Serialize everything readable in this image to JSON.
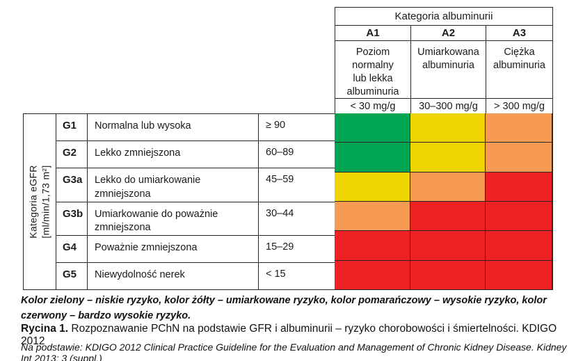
{
  "colors": {
    "green": "#00a553",
    "yellow": "#eed402",
    "orange": "#f79a52",
    "red": "#ee2124",
    "line": "#262626"
  },
  "albuminuria": {
    "title": "Kategoria albuminurii",
    "columns": [
      {
        "code": "A1",
        "desc": "Poziom\nnormalny\nlub lekka\nalbuminuria",
        "range": "< 30 mg/g"
      },
      {
        "code": "A2",
        "desc": "Umiarkowana\nalbuminuria",
        "range": "30–300 mg/g"
      },
      {
        "code": "A3",
        "desc": "Ciężka\nalbuminuria",
        "range": "> 300 mg/g"
      }
    ]
  },
  "gfr_axis": {
    "label_line1": "Kategoria eGFR",
    "label_line2": "[ml/min/1,73 m²]"
  },
  "gfr_rows": [
    {
      "code": "G1",
      "desc": "Normalna lub wysoka",
      "range": "≥ 90",
      "risk": [
        "green",
        "yellow",
        "orange"
      ]
    },
    {
      "code": "G2",
      "desc": "Lekko zmniejszona",
      "range": "60–89",
      "risk": [
        "green",
        "yellow",
        "orange"
      ]
    },
    {
      "code": "G3a",
      "desc": "Lekko do umiarkowanie zmniejszona",
      "range": "45–59",
      "risk": [
        "yellow",
        "orange",
        "red"
      ]
    },
    {
      "code": "G3b",
      "desc": "Umiarkowanie do poważnie zmniejszona",
      "range": "30–44",
      "risk": [
        "orange",
        "red",
        "red"
      ]
    },
    {
      "code": "G4",
      "desc": "Poważnie zmniejszona",
      "range": "15–29",
      "risk": [
        "red",
        "red",
        "red"
      ]
    },
    {
      "code": "G5",
      "desc": "Niewydolność nerek",
      "range": "< 15",
      "risk": [
        "red",
        "red",
        "red"
      ]
    }
  ],
  "legend": "Kolor zielony – niskie ryzyko, kolor żółty – umiarkowane ryzyko, kolor pomarańczowy – wysokie ryzyko, kolor czerwony – bardzo wysokie ryzyko.",
  "caption": {
    "label": "Rycina 1.",
    "text": " Rozpoznawanie PChN na podstawie GFR i albuminurii – ryzyko chorobowości i śmiertelności. KDIGO 2012"
  },
  "source": "Na podstawie: KDIGO 2012 Clinical Practice Guideline for the Evaluation and Management of Chronic Kidney Disease. Kidney Int 2013; 3 (suppl.)",
  "chart_data": {
    "type": "heatmap",
    "title": "Rozpoznawanie PChN na podstawie GFR i albuminurii – ryzyko chorobowości i śmiertelności. KDIGO 2012",
    "x_axis_label": "Kategoria albuminurii",
    "y_axis_label": "Kategoria eGFR [ml/min/1,73 m²]",
    "x_categories": [
      "A1 (< 30 mg/g)",
      "A2 (30–300 mg/g)",
      "A3 (> 300 mg/g)"
    ],
    "y_categories": [
      "G1 (≥ 90)",
      "G2 (60–89)",
      "G3a (45–59)",
      "G3b (30–44)",
      "G4 (15–29)",
      "G5 (< 15)"
    ],
    "values": [
      [
        "niskie ryzyko",
        "umiarkowane ryzyko",
        "wysokie ryzyko"
      ],
      [
        "niskie ryzyko",
        "umiarkowane ryzyko",
        "wysokie ryzyko"
      ],
      [
        "umiarkowane ryzyko",
        "wysokie ryzyko",
        "bardzo wysokie ryzyko"
      ],
      [
        "wysokie ryzyko",
        "bardzo wysokie ryzyko",
        "bardzo wysokie ryzyko"
      ],
      [
        "bardzo wysokie ryzyko",
        "bardzo wysokie ryzyko",
        "bardzo wysokie ryzyko"
      ],
      [
        "bardzo wysokie ryzyko",
        "bardzo wysokie ryzyko",
        "bardzo wysokie ryzyko"
      ]
    ],
    "color_scale": {
      "niskie ryzyko": "#00a553",
      "umiarkowane ryzyko": "#eed402",
      "wysokie ryzyko": "#f79a52",
      "bardzo wysokie ryzyko": "#ee2124"
    },
    "grid": true,
    "legend_position": "bottom"
  }
}
